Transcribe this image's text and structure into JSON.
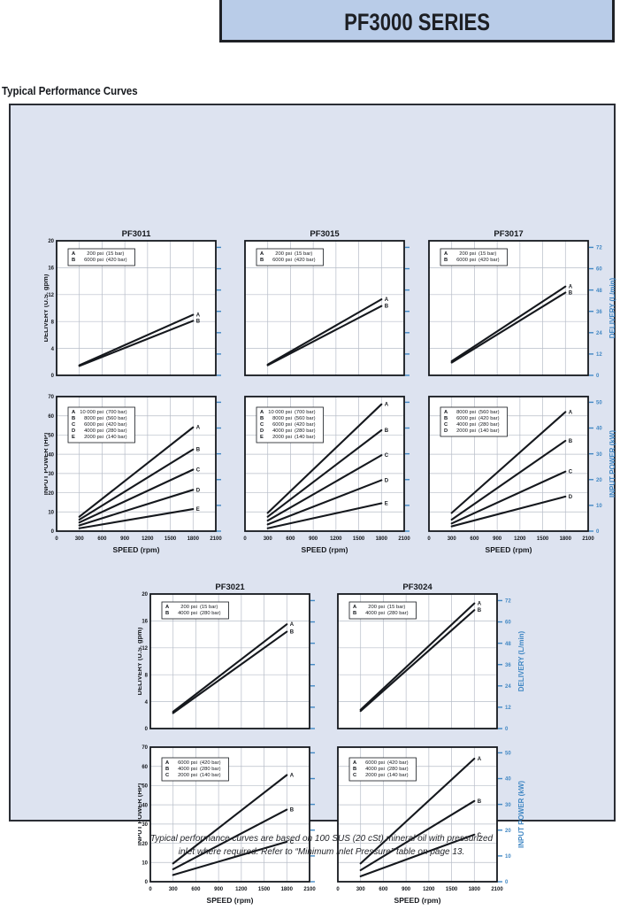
{
  "page": {
    "title_box": "PF3000 SERIES",
    "section_heading": "Typical Performance Curves",
    "footer_line1": "Typical performance curves are based on 100 SUS (20 cSt) mineral oil with pressurized",
    "footer_line2": "inlet where required. Refer to “Minimum Inlet Pressure” table on page 13."
  },
  "colors": {
    "title_box_bg": "#b9cce8",
    "panel_bg": "#dde3f0",
    "chart_bg": "#ffffff",
    "grid": "#b7bdc8",
    "ink": "#15181d",
    "right_axis_blue": "#4288c4"
  },
  "chart_data": [
    {
      "id": "pf3011-delivery",
      "type": "line",
      "title": "PF3011",
      "xlabel": "",
      "ylabel_left": "DELIVERY (U.S. gpm)",
      "ylabel_right": "",
      "x_range": [
        0,
        2100
      ],
      "x_tick": 300,
      "x_labels": false,
      "y_range": [
        0,
        20
      ],
      "y_tick": 4,
      "y_labels": true,
      "grid": true,
      "right_axis": {
        "unit": "L/min",
        "max": 72,
        "tick": 12,
        "factor": 3.785,
        "labels": false
      },
      "legend": [
        {
          "key": "A",
          "psi": "200 psi",
          "bar": "(15 bar)"
        },
        {
          "key": "B",
          "psi": "6000 psi",
          "bar": "(420 bar)"
        }
      ],
      "series": [
        {
          "name": "A",
          "x": [
            300,
            1800
          ],
          "y": [
            1.5,
            9.0
          ]
        },
        {
          "name": "B",
          "x": [
            300,
            1800
          ],
          "y": [
            1.4,
            8.1
          ]
        }
      ]
    },
    {
      "id": "pf3015-delivery",
      "type": "line",
      "title": "PF3015",
      "xlabel": "",
      "ylabel_left": "",
      "ylabel_right": "",
      "x_range": [
        0,
        2100
      ],
      "x_tick": 300,
      "x_labels": false,
      "y_range": [
        0,
        20
      ],
      "y_tick": 4,
      "y_labels": false,
      "grid": true,
      "right_axis": {
        "unit": "L/min",
        "max": 72,
        "tick": 12,
        "factor": 3.785,
        "labels": false
      },
      "legend": [
        {
          "key": "A",
          "psi": "200 psi",
          "bar": "(15 bar)"
        },
        {
          "key": "B",
          "psi": "6000 psi",
          "bar": "(420 bar)"
        }
      ],
      "series": [
        {
          "name": "A",
          "x": [
            300,
            1800
          ],
          "y": [
            1.6,
            11.3
          ]
        },
        {
          "name": "B",
          "x": [
            300,
            1800
          ],
          "y": [
            1.5,
            10.3
          ]
        }
      ]
    },
    {
      "id": "pf3017-delivery",
      "type": "line",
      "title": "PF3017",
      "xlabel": "",
      "ylabel_left": "",
      "ylabel_right": "DELIVERY (L/min)",
      "x_range": [
        0,
        2100
      ],
      "x_tick": 300,
      "x_labels": false,
      "y_range": [
        0,
        20
      ],
      "y_tick": 4,
      "y_labels": false,
      "grid": true,
      "right_axis": {
        "unit": "L/min",
        "max": 72,
        "tick": 12,
        "factor": 3.785,
        "labels": true
      },
      "legend": [
        {
          "key": "A",
          "psi": "200 psi",
          "bar": "(15 bar)"
        },
        {
          "key": "B",
          "psi": "6000 psi",
          "bar": "(420 bar)"
        }
      ],
      "series": [
        {
          "name": "A",
          "x": [
            300,
            1800
          ],
          "y": [
            2.1,
            13.2
          ]
        },
        {
          "name": "B",
          "x": [
            300,
            1800
          ],
          "y": [
            1.9,
            12.3
          ]
        }
      ]
    },
    {
      "id": "pf3011-power",
      "type": "line",
      "title": "",
      "xlabel": "SPEED (rpm)",
      "ylabel_left": "INPUT POWER (HP)",
      "ylabel_right": "",
      "x_range": [
        0,
        2100
      ],
      "x_tick": 300,
      "x_labels": true,
      "y_range": [
        0,
        70
      ],
      "y_tick": 10,
      "y_labels": true,
      "grid": true,
      "right_axis": {
        "unit": "kW",
        "max": 50,
        "tick": 10,
        "factor": 0.7457,
        "labels": false
      },
      "legend": [
        {
          "key": "A",
          "psi": "10 000 psi",
          "bar": "(700 bar)"
        },
        {
          "key": "B",
          "psi": "8000 psi",
          "bar": "(560 bar)"
        },
        {
          "key": "C",
          "psi": "6000 psi",
          "bar": "(420 bar)"
        },
        {
          "key": "D",
          "psi": "4000 psi",
          "bar": "(280 bar)"
        },
        {
          "key": "E",
          "psi": "2000 psi",
          "bar": "(140 bar)"
        }
      ],
      "series": [
        {
          "name": "A",
          "x": [
            300,
            1800
          ],
          "y": [
            7.5,
            54.0
          ]
        },
        {
          "name": "B",
          "x": [
            300,
            1800
          ],
          "y": [
            6.0,
            42.5
          ]
        },
        {
          "name": "C",
          "x": [
            300,
            1800
          ],
          "y": [
            4.5,
            32.0
          ]
        },
        {
          "name": "D",
          "x": [
            300,
            1800
          ],
          "y": [
            3.0,
            21.5
          ]
        },
        {
          "name": "E",
          "x": [
            300,
            1800
          ],
          "y": [
            1.5,
            11.5
          ]
        }
      ]
    },
    {
      "id": "pf3015-power",
      "type": "line",
      "title": "",
      "xlabel": "SPEED (rpm)",
      "ylabel_left": "",
      "ylabel_right": "",
      "x_range": [
        0,
        2100
      ],
      "x_tick": 300,
      "x_labels": true,
      "y_range": [
        0,
        70
      ],
      "y_tick": 10,
      "y_labels": false,
      "grid": true,
      "right_axis": {
        "unit": "kW",
        "max": 50,
        "tick": 10,
        "factor": 0.7457,
        "labels": false
      },
      "legend": [
        {
          "key": "A",
          "psi": "10 000 psi",
          "bar": "(700 bar)"
        },
        {
          "key": "B",
          "psi": "8000 psi",
          "bar": "(560 bar)"
        },
        {
          "key": "C",
          "psi": "6000 psi",
          "bar": "(420 bar)"
        },
        {
          "key": "D",
          "psi": "4000 psi",
          "bar": "(280 bar)"
        },
        {
          "key": "E",
          "psi": "2000 psi",
          "bar": "(140 bar)"
        }
      ],
      "series": [
        {
          "name": "A",
          "x": [
            300,
            1800
          ],
          "y": [
            9.5,
            66.0
          ]
        },
        {
          "name": "B",
          "x": [
            300,
            1800
          ],
          "y": [
            7.5,
            52.5
          ]
        },
        {
          "name": "C",
          "x": [
            300,
            1800
          ],
          "y": [
            5.5,
            39.5
          ]
        },
        {
          "name": "D",
          "x": [
            300,
            1800
          ],
          "y": [
            3.5,
            26.5
          ]
        },
        {
          "name": "E",
          "x": [
            300,
            1800
          ],
          "y": [
            1.5,
            14.5
          ]
        }
      ]
    },
    {
      "id": "pf3017-power",
      "type": "line",
      "title": "",
      "xlabel": "SPEED (rpm)",
      "ylabel_left": "",
      "ylabel_right": "INPUT POWER (kW)",
      "x_range": [
        0,
        2100
      ],
      "x_tick": 300,
      "x_labels": true,
      "y_range": [
        0,
        70
      ],
      "y_tick": 10,
      "y_labels": false,
      "grid": true,
      "right_axis": {
        "unit": "kW",
        "max": 50,
        "tick": 10,
        "factor": 0.7457,
        "labels": true
      },
      "legend": [
        {
          "key": "A",
          "psi": "8000 psi",
          "bar": "(560 bar)"
        },
        {
          "key": "B",
          "psi": "6000 psi",
          "bar": "(420 bar)"
        },
        {
          "key": "C",
          "psi": "4000 psi",
          "bar": "(280 bar)"
        },
        {
          "key": "D",
          "psi": "2000 psi",
          "bar": "(140 bar)"
        }
      ],
      "series": [
        {
          "name": "A",
          "x": [
            300,
            1800
          ],
          "y": [
            9.5,
            62.0
          ]
        },
        {
          "name": "B",
          "x": [
            300,
            1800
          ],
          "y": [
            6.0,
            47.0
          ]
        },
        {
          "name": "C",
          "x": [
            300,
            1800
          ],
          "y": [
            4.0,
            31.0
          ]
        },
        {
          "name": "D",
          "x": [
            300,
            1800
          ],
          "y": [
            2.5,
            18.0
          ]
        }
      ]
    },
    {
      "id": "pf3021-delivery",
      "type": "line",
      "title": "PF3021",
      "xlabel": "",
      "ylabel_left": "DELIVERY (U.S. gpm)",
      "ylabel_right": "",
      "x_range": [
        0,
        2100
      ],
      "x_tick": 300,
      "x_labels": false,
      "y_range": [
        0,
        20
      ],
      "y_tick": 4,
      "y_labels": true,
      "grid": true,
      "right_axis": {
        "unit": "L/min",
        "max": 72,
        "tick": 12,
        "factor": 3.785,
        "labels": false
      },
      "legend": [
        {
          "key": "A",
          "psi": "200 psi",
          "bar": "(15 bar)"
        },
        {
          "key": "B",
          "psi": "4000 psi",
          "bar": "(280 bar)"
        }
      ],
      "series": [
        {
          "name": "A",
          "x": [
            300,
            1800
          ],
          "y": [
            2.5,
            15.5
          ]
        },
        {
          "name": "B",
          "x": [
            300,
            1800
          ],
          "y": [
            2.3,
            14.4
          ]
        }
      ]
    },
    {
      "id": "pf3024-delivery",
      "type": "line",
      "title": "PF3024",
      "xlabel": "",
      "ylabel_left": "",
      "ylabel_right": "DELIVERY (L/min)",
      "x_range": [
        0,
        2100
      ],
      "x_tick": 300,
      "x_labels": false,
      "y_range": [
        0,
        20
      ],
      "y_tick": 4,
      "y_labels": false,
      "grid": true,
      "right_axis": {
        "unit": "L/min",
        "max": 72,
        "tick": 12,
        "factor": 3.785,
        "labels": true
      },
      "legend": [
        {
          "key": "A",
          "psi": "200 psi",
          "bar": "(15 bar)"
        },
        {
          "key": "B",
          "psi": "4000 psi",
          "bar": "(280 bar)"
        }
      ],
      "series": [
        {
          "name": "A",
          "x": [
            300,
            1800
          ],
          "y": [
            2.8,
            18.6
          ]
        },
        {
          "name": "B",
          "x": [
            300,
            1800
          ],
          "y": [
            2.6,
            17.6
          ]
        }
      ]
    },
    {
      "id": "pf3021-power",
      "type": "line",
      "title": "",
      "xlabel": "SPEED (rpm)",
      "ylabel_left": "INPUT POWER (HP)",
      "ylabel_right": "",
      "x_range": [
        0,
        2100
      ],
      "x_tick": 300,
      "x_labels": true,
      "y_range": [
        0,
        70
      ],
      "y_tick": 10,
      "y_labels": true,
      "grid": true,
      "right_axis": {
        "unit": "kW",
        "max": 50,
        "tick": 10,
        "factor": 0.7457,
        "labels": false
      },
      "legend": [
        {
          "key": "A",
          "psi": "6000 psi",
          "bar": "(420 bar)"
        },
        {
          "key": "B",
          "psi": "4000 psi",
          "bar": "(280 bar)"
        },
        {
          "key": "C",
          "psi": "2000 psi",
          "bar": "(140 bar)"
        }
      ],
      "series": [
        {
          "name": "A",
          "x": [
            300,
            1800
          ],
          "y": [
            9.5,
            55.5
          ]
        },
        {
          "name": "B",
          "x": [
            300,
            1800
          ],
          "y": [
            6.5,
            37.5
          ]
        },
        {
          "name": "C",
          "x": [
            300,
            1800
          ],
          "y": [
            3.5,
            20.8
          ]
        }
      ]
    },
    {
      "id": "pf3024-power",
      "type": "line",
      "title": "",
      "xlabel": "SPEED (rpm)",
      "ylabel_left": "",
      "ylabel_right": "INPUT POWER (kW)",
      "x_range": [
        0,
        2100
      ],
      "x_tick": 300,
      "x_labels": true,
      "y_range": [
        0,
        70
      ],
      "y_tick": 10,
      "y_labels": false,
      "grid": true,
      "right_axis": {
        "unit": "kW",
        "max": 50,
        "tick": 10,
        "factor": 0.7457,
        "labels": true
      },
      "legend": [
        {
          "key": "A",
          "psi": "6000 psi",
          "bar": "(420 bar)"
        },
        {
          "key": "B",
          "psi": "4000 psi",
          "bar": "(280 bar)"
        },
        {
          "key": "C",
          "psi": "2000 psi",
          "bar": "(140 bar)"
        }
      ],
      "series": [
        {
          "name": "A",
          "x": [
            300,
            1800
          ],
          "y": [
            9.5,
            64.0
          ]
        },
        {
          "name": "B",
          "x": [
            300,
            1800
          ],
          "y": [
            6.0,
            42.0
          ]
        },
        {
          "name": "C",
          "x": [
            300,
            1800
          ],
          "y": [
            2.8,
            24.5
          ]
        }
      ]
    }
  ]
}
